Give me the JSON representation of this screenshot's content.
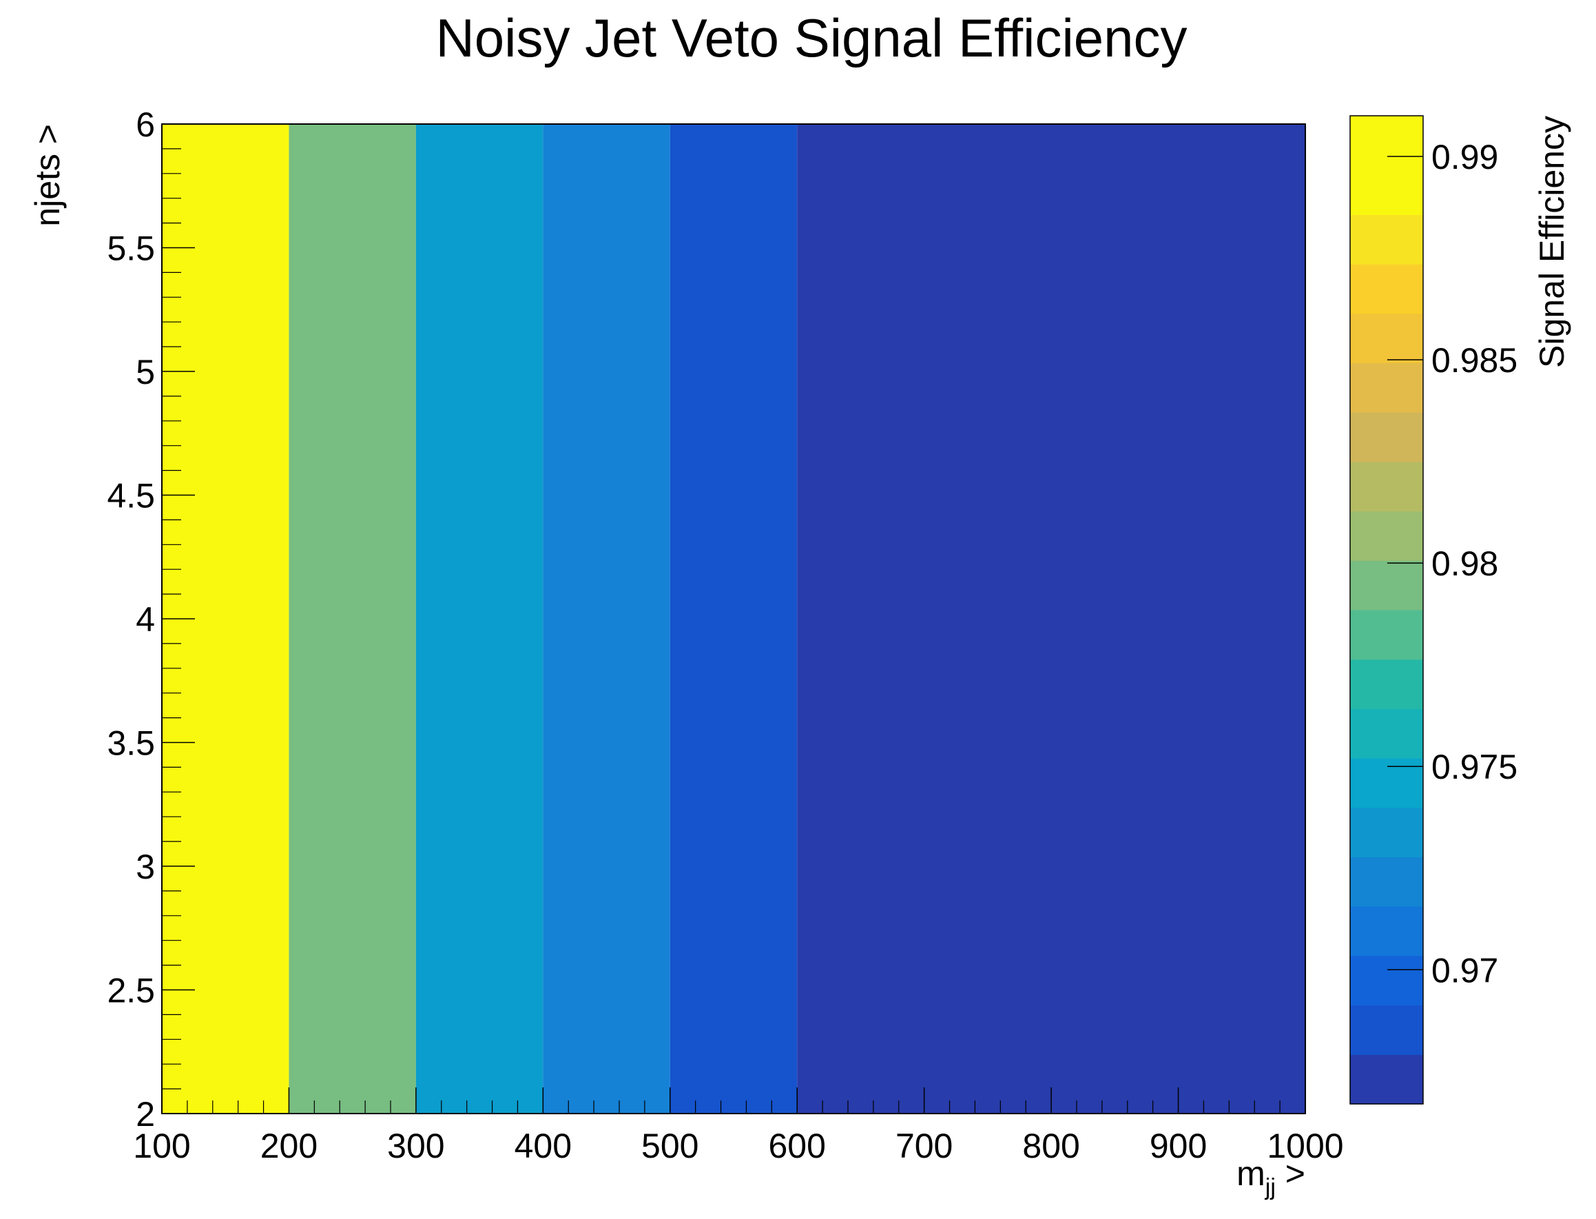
{
  "chart_data": {
    "type": "heatmap",
    "title": "Noisy Jet Veto Signal Efficiency",
    "xlabel": {
      "main": "m",
      "sub": "jj",
      "suffix": " >"
    },
    "ylabel": "njets >",
    "zlabel": "Signal Efficiency",
    "xlim": [
      100,
      1000
    ],
    "ylim": [
      2,
      6
    ],
    "x_ticks": [
      "100",
      "200",
      "300",
      "400",
      "500",
      "600",
      "700",
      "800",
      "900",
      "1000"
    ],
    "y_ticks": [
      "2",
      "2.5",
      "3",
      "3.5",
      "4",
      "4.5",
      "5",
      "5.5",
      "6"
    ],
    "z_ticks": [
      "0.97",
      "0.975",
      "0.98",
      "0.985",
      "0.99"
    ],
    "zlim": [
      0.9667,
      0.991
    ],
    "cells": [
      {
        "x": [
          100,
          200
        ],
        "y": [
          2,
          6
        ],
        "value": 0.9905,
        "color": "#f9f90f"
      },
      {
        "x": [
          200,
          300
        ],
        "y": [
          2,
          6
        ],
        "value": 0.98,
        "color": "#78bd81"
      },
      {
        "x": [
          300,
          400
        ],
        "y": [
          2,
          6
        ],
        "value": 0.975,
        "color": "#0b9dcd"
      },
      {
        "x": [
          400,
          500
        ],
        "y": [
          2,
          6
        ],
        "value": 0.9715,
        "color": "#1582d6"
      },
      {
        "x": [
          500,
          600
        ],
        "y": [
          2,
          6
        ],
        "value": 0.969,
        "color": "#1654cd"
      },
      {
        "x": [
          600,
          1000
        ],
        "y": [
          2,
          6
        ],
        "value": 0.967,
        "color": "#283cab"
      }
    ],
    "palette": [
      "#283cab",
      "#1654cd",
      "#1263d9",
      "#1376d9",
      "#1385d3",
      "#0f96cf",
      "#0aa6cb",
      "#16b2b8",
      "#26b8a6",
      "#52bd91",
      "#78bd81",
      "#9bbe70",
      "#b5bb63",
      "#d0b659",
      "#e3bb4a",
      "#f2c437",
      "#fbcf2b",
      "#f8e323",
      "#f9f90f",
      "#f9f90f"
    ]
  }
}
